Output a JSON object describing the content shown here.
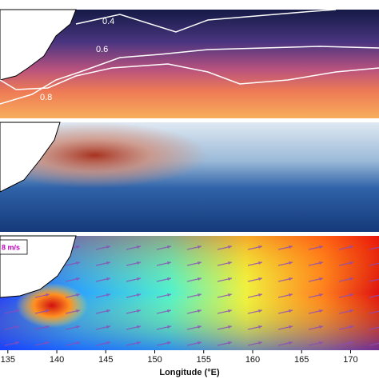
{
  "x_axis": {
    "label": "Longitude (°E)",
    "xlim": [
      134.2,
      172.9
    ],
    "ticks": [
      135,
      140,
      145,
      150,
      155,
      160,
      165,
      170
    ]
  },
  "panels": [
    {
      "contour_labels": [
        "0.4",
        "0.6",
        "0.8"
      ]
    },
    {},
    {
      "vector_key": "8 m/s"
    }
  ]
}
